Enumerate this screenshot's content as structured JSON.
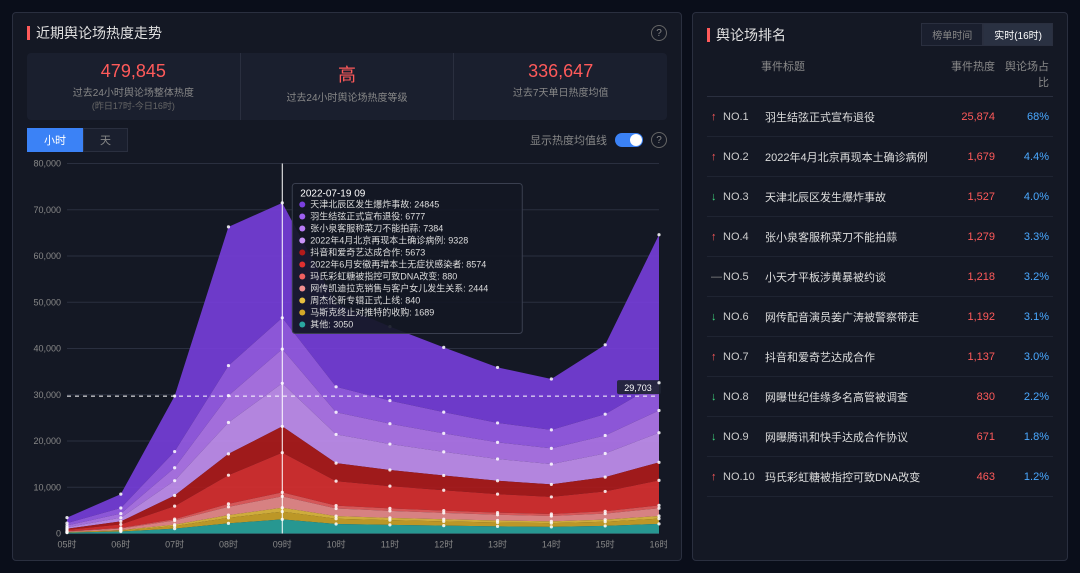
{
  "left": {
    "title": "近期舆论场热度走势",
    "stats": [
      {
        "value": "479,845",
        "label": "过去24小时舆论场整体热度",
        "sub": "(昨日17时-今日16时)"
      },
      {
        "value": "高",
        "label": "过去24小时舆论场热度等级",
        "sub": ""
      },
      {
        "value": "336,647",
        "label": "过去7天单日热度均值",
        "sub": ""
      }
    ],
    "tabs": {
      "hour": "小时",
      "day": "天"
    },
    "toggleLabel": "显示热度均值线",
    "chart": {
      "type": "stacked-area",
      "ylim": [
        0,
        80000
      ],
      "ytick_step": 10000,
      "xlabels": [
        "05时",
        "06时",
        "07时",
        "08时",
        "09时",
        "10时",
        "11时",
        "12时",
        "13时",
        "14时",
        "15时",
        "16时"
      ],
      "mean_value": 29703,
      "mean_label": "29,703",
      "vertical_marker_index": 4,
      "background_color": "#141824",
      "grid_color": "#2a2f3f",
      "series": [
        {
          "name": "天津北辰区发生爆炸事故",
          "color": "#7a3fe0",
          "values": [
            1200,
            3000,
            12000,
            30000,
            24845,
            18000,
            16000,
            14000,
            12000,
            11000,
            15000,
            32000
          ]
        },
        {
          "name": "羽生结弦正式宣布退役",
          "color": "#9d5ff0",
          "values": [
            500,
            1200,
            3500,
            6500,
            6777,
            5500,
            5000,
            4600,
            4200,
            4000,
            4600,
            6000
          ]
        },
        {
          "name": "张小泉客服称菜刀不能拍蒜",
          "color": "#b77af5",
          "values": [
            400,
            900,
            2800,
            5800,
            7384,
            4800,
            4400,
            4000,
            3600,
            3400,
            3900,
            4800
          ]
        },
        {
          "name": "2022年4月北京再现本土确诊病例",
          "color": "#c994f8",
          "values": [
            300,
            800,
            3200,
            6800,
            9328,
            6200,
            5600,
            5100,
            4700,
            4400,
            5100,
            6400
          ]
        },
        {
          "name": "抖音和爱奇艺达成合作",
          "color": "#b31a1a",
          "values": [
            250,
            650,
            2300,
            4600,
            5673,
            3900,
            3500,
            3200,
            2900,
            2700,
            3100,
            3900
          ]
        },
        {
          "name": "2022年6月安徽再增本土无症状感染者",
          "color": "#e03030",
          "values": [
            300,
            750,
            2800,
            6200,
            8574,
            5300,
            4800,
            4400,
            4000,
            3700,
            4300,
            5400
          ]
        },
        {
          "name": "玛氏彩虹糖被指控可致DNA改变",
          "color": "#f06060",
          "values": [
            60,
            130,
            310,
            640,
            880,
            610,
            550,
            500,
            460,
            430,
            490,
            620
          ]
        },
        {
          "name": "网传凯迪拉克销售与客户女儿发生关系",
          "color": "#f29090",
          "values": [
            120,
            350,
            900,
            1800,
            2444,
            1650,
            1500,
            1360,
            1240,
            1160,
            1320,
            1680
          ]
        },
        {
          "name": "周杰伦新专辑正式上线",
          "color": "#e8c040",
          "values": [
            50,
            110,
            290,
            590,
            840,
            560,
            510,
            460,
            420,
            390,
            450,
            570
          ]
        },
        {
          "name": "马斯克终止对推特的收购",
          "color": "#d4a828",
          "values": [
            80,
            200,
            560,
            1180,
            1689,
            1140,
            1020,
            930,
            850,
            790,
            900,
            1140
          ]
        },
        {
          "name": "其他",
          "color": "#2aa8a0",
          "values": [
            180,
            420,
            1060,
            2200,
            3050,
            2060,
            1860,
            1700,
            1540,
            1440,
            1640,
            2080
          ]
        }
      ],
      "tooltip": {
        "title": "2022-07-19 09",
        "rows": [
          {
            "color": "#7a3fe0",
            "text": "天津北辰区发生爆炸事故: 24845"
          },
          {
            "color": "#9d5ff0",
            "text": "羽生结弦正式宣布退役: 6777"
          },
          {
            "color": "#b77af5",
            "text": "张小泉客服称菜刀不能拍蒜: 7384"
          },
          {
            "color": "#c994f8",
            "text": "2022年4月北京再现本土确诊病例: 9328"
          },
          {
            "color": "#b31a1a",
            "text": "抖音和爱奇艺达成合作: 5673"
          },
          {
            "color": "#e03030",
            "text": "2022年6月安徽再增本土无症状感染者: 8574"
          },
          {
            "color": "#f06060",
            "text": "玛氏彩虹糖被指控可致DNA改变: 880"
          },
          {
            "color": "#f29090",
            "text": "网传凯迪拉克销售与客户女儿发生关系: 2444"
          },
          {
            "color": "#e8c040",
            "text": "周杰伦新专辑正式上线: 840"
          },
          {
            "color": "#d4a828",
            "text": "马斯克终止对推特的收购: 1689"
          },
          {
            "color": "#2aa8a0",
            "text": "其他: 3050"
          }
        ]
      }
    }
  },
  "right": {
    "title": "舆论场排名",
    "tabs": {
      "list": "榜单时间",
      "live": "实时(16时)"
    },
    "columns": {
      "topic": "事件标题",
      "heat": "事件热度",
      "pct": "舆论场占比"
    },
    "rows": [
      {
        "dir": "up",
        "no": "NO.1",
        "title": "羽生结弦正式宣布退役",
        "heat": "25,874",
        "pct": "68%"
      },
      {
        "dir": "up",
        "no": "NO.2",
        "title": "2022年4月北京再现本土确诊病例",
        "heat": "1,679",
        "pct": "4.4%"
      },
      {
        "dir": "down",
        "no": "NO.3",
        "title": "天津北辰区发生爆炸事故",
        "heat": "1,527",
        "pct": "4.0%"
      },
      {
        "dir": "up",
        "no": "NO.4",
        "title": "张小泉客服称菜刀不能拍蒜",
        "heat": "1,279",
        "pct": "3.3%"
      },
      {
        "dir": "neutral",
        "no": "NO.5",
        "title": "小天才平板涉黄暴被约谈",
        "heat": "1,218",
        "pct": "3.2%"
      },
      {
        "dir": "down",
        "no": "NO.6",
        "title": "网传配音演员姜广涛被警察带走",
        "heat": "1,192",
        "pct": "3.1%"
      },
      {
        "dir": "up",
        "no": "NO.7",
        "title": "抖音和爱奇艺达成合作",
        "heat": "1,137",
        "pct": "3.0%"
      },
      {
        "dir": "down",
        "no": "NO.8",
        "title": "网曝世纪佳缘多名高管被调查",
        "heat": "830",
        "pct": "2.2%"
      },
      {
        "dir": "down",
        "no": "NO.9",
        "title": "网曝腾讯和快手达成合作协议",
        "heat": "671",
        "pct": "1.8%"
      },
      {
        "dir": "up",
        "no": "NO.10",
        "title": "玛氏彩虹糖被指控可致DNA改变",
        "heat": "463",
        "pct": "1.2%"
      }
    ]
  }
}
